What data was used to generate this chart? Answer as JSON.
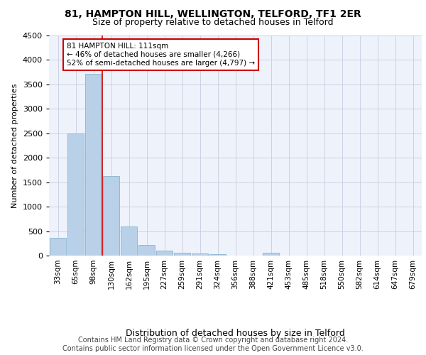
{
  "title": "81, HAMPTON HILL, WELLINGTON, TELFORD, TF1 2ER",
  "subtitle": "Size of property relative to detached houses in Telford",
  "xlabel": "Distribution of detached houses by size in Telford",
  "ylabel": "Number of detached properties",
  "categories": [
    "33sqm",
    "65sqm",
    "98sqm",
    "130sqm",
    "162sqm",
    "195sqm",
    "227sqm",
    "259sqm",
    "291sqm",
    "324sqm",
    "356sqm",
    "388sqm",
    "421sqm",
    "453sqm",
    "485sqm",
    "518sqm",
    "550sqm",
    "582sqm",
    "614sqm",
    "647sqm",
    "679sqm"
  ],
  "values": [
    370,
    2500,
    3720,
    1630,
    590,
    225,
    105,
    65,
    40,
    35,
    0,
    0,
    65,
    0,
    0,
    0,
    0,
    0,
    0,
    0,
    0
  ],
  "bar_color": "#b8d0e8",
  "bar_edgecolor": "#7aaac8",
  "vline_x": 2.5,
  "vline_color": "#cc0000",
  "annotation_text": "81 HAMPTON HILL: 111sqm\n← 46% of detached houses are smaller (4,266)\n52% of semi-detached houses are larger (4,797) →",
  "annotation_box_color": "#cc0000",
  "ylim": [
    0,
    4500
  ],
  "yticks": [
    0,
    500,
    1000,
    1500,
    2000,
    2500,
    3000,
    3500,
    4000,
    4500
  ],
  "bg_color": "#eef2fb",
  "grid_color": "#c8cce0",
  "footer": "Contains HM Land Registry data © Crown copyright and database right 2024.\nContains public sector information licensed under the Open Government Licence v3.0.",
  "title_fontsize": 10,
  "subtitle_fontsize": 9,
  "xlabel_fontsize": 9,
  "ylabel_fontsize": 8,
  "footer_fontsize": 7,
  "tick_fontsize": 8,
  "xtick_fontsize": 7.5
}
